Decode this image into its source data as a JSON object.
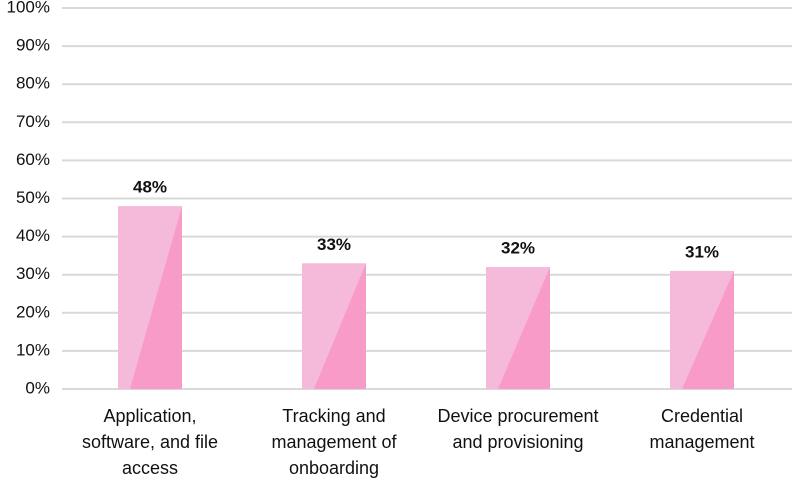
{
  "chart_data": {
    "type": "bar",
    "categories": [
      "Application, software, and file access",
      "Tracking and management of onboarding",
      "Device procurement and provisioning",
      "Credential management"
    ],
    "values": [
      48,
      33,
      32,
      31
    ],
    "value_labels": [
      "48%",
      "33%",
      "32%",
      "31%"
    ],
    "color": "#f5b9d9",
    "shade_color": "#f99bc9",
    "ylim": [
      0,
      100
    ],
    "yticks": [
      {
        "value": 0,
        "label": "0%"
      },
      {
        "value": 10,
        "label": "10%"
      },
      {
        "value": 20,
        "label": "20%"
      },
      {
        "value": 30,
        "label": "30%"
      },
      {
        "value": 40,
        "label": "40%"
      },
      {
        "value": 50,
        "label": "50%"
      },
      {
        "value": 60,
        "label": "60%"
      },
      {
        "value": 70,
        "label": "70%"
      },
      {
        "value": 80,
        "label": "80%"
      },
      {
        "value": 90,
        "label": "90%"
      },
      {
        "value": 100,
        "label": "100%"
      }
    ],
    "grid": true
  }
}
